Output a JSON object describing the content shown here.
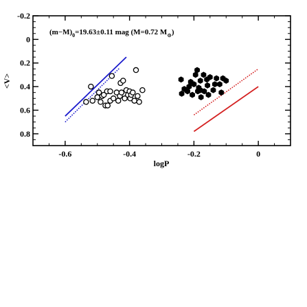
{
  "chart_data": {
    "type": "scatter",
    "xlabel": "logP",
    "ylabel": "<V>",
    "xlim": [
      -0.7,
      0.1
    ],
    "ylim": [
      0.9,
      -0.2
    ],
    "y_inverted": true,
    "grid": false,
    "x_ticks": [
      "-0.6",
      "-0.4",
      "-0.2",
      "0"
    ],
    "x_tick_values": [
      -0.6,
      -0.4,
      -0.2,
      0
    ],
    "y_ticks": [
      "-0.2",
      "0",
      "0.2",
      "0.4",
      "0.6",
      "0.8"
    ],
    "y_tick_values": [
      -0.2,
      0,
      0.2,
      0.4,
      0.6,
      0.8
    ],
    "annotation": {
      "before_sub": "(m−M)",
      "sub1": "0",
      "middle": "=19.63±0.11 mag (M=0.72 M",
      "sub2": "⊙",
      "after": ")"
    },
    "series": [
      {
        "marker": "open-circle",
        "color": "#000000",
        "points": [
          [
            -0.535,
            0.53
          ],
          [
            -0.52,
            0.4
          ],
          [
            -0.515,
            0.52
          ],
          [
            -0.5,
            0.49
          ],
          [
            -0.495,
            0.45
          ],
          [
            -0.49,
            0.53
          ],
          [
            -0.485,
            0.48
          ],
          [
            -0.48,
            0.47
          ],
          [
            -0.475,
            0.56
          ],
          [
            -0.47,
            0.44
          ],
          [
            -0.468,
            0.56
          ],
          [
            -0.46,
            0.52
          ],
          [
            -0.46,
            0.44
          ],
          [
            -0.455,
            0.31
          ],
          [
            -0.45,
            0.5
          ],
          [
            -0.44,
            0.45
          ],
          [
            -0.435,
            0.52
          ],
          [
            -0.43,
            0.48
          ],
          [
            -0.428,
            0.37
          ],
          [
            -0.425,
            0.45
          ],
          [
            -0.42,
            0.35
          ],
          [
            -0.415,
            0.5
          ],
          [
            -0.41,
            0.43
          ],
          [
            -0.405,
            0.47
          ],
          [
            -0.4,
            0.44
          ],
          [
            -0.398,
            0.5
          ],
          [
            -0.395,
            0.47
          ],
          [
            -0.39,
            0.45
          ],
          [
            -0.385,
            0.52
          ],
          [
            -0.38,
            0.26
          ],
          [
            -0.375,
            0.48
          ],
          [
            -0.37,
            0.53
          ],
          [
            -0.36,
            0.43
          ]
        ]
      },
      {
        "marker": "filled-hexagon",
        "color": "#000000",
        "points": [
          [
            -0.24,
            0.34
          ],
          [
            -0.238,
            0.46
          ],
          [
            -0.23,
            0.42
          ],
          [
            -0.22,
            0.44
          ],
          [
            -0.215,
            0.4
          ],
          [
            -0.21,
            0.36
          ],
          [
            -0.205,
            0.47
          ],
          [
            -0.2,
            0.38
          ],
          [
            -0.195,
            0.3
          ],
          [
            -0.19,
            0.26
          ],
          [
            -0.188,
            0.44
          ],
          [
            -0.185,
            0.41
          ],
          [
            -0.18,
            0.35
          ],
          [
            -0.178,
            0.49
          ],
          [
            -0.17,
            0.3
          ],
          [
            -0.168,
            0.44
          ],
          [
            -0.16,
            0.34
          ],
          [
            -0.158,
            0.39
          ],
          [
            -0.155,
            0.47
          ],
          [
            -0.15,
            0.32
          ],
          [
            -0.14,
            0.43
          ],
          [
            -0.135,
            0.38
          ],
          [
            -0.13,
            0.33
          ],
          [
            -0.12,
            0.38
          ],
          [
            -0.115,
            0.45
          ],
          [
            -0.11,
            0.33
          ],
          [
            -0.1,
            0.35
          ],
          [
            -0.18,
            0.43
          ]
        ]
      }
    ],
    "lines": [
      {
        "color": "#1a1acc",
        "style": "solid",
        "x": [
          -0.6,
          -0.41
        ],
        "y": [
          0.65,
          0.15
        ]
      },
      {
        "color": "#1a1acc",
        "style": "dotted",
        "x": [
          -0.6,
          -0.43
        ],
        "y": [
          0.7,
          0.24
        ]
      },
      {
        "color": "#d42020",
        "style": "solid",
        "x": [
          -0.2,
          0.0
        ],
        "y": [
          0.78,
          0.4
        ]
      },
      {
        "color": "#d42020",
        "style": "dotted",
        "x": [
          -0.2,
          0.0
        ],
        "y": [
          0.64,
          0.25
        ]
      }
    ]
  }
}
